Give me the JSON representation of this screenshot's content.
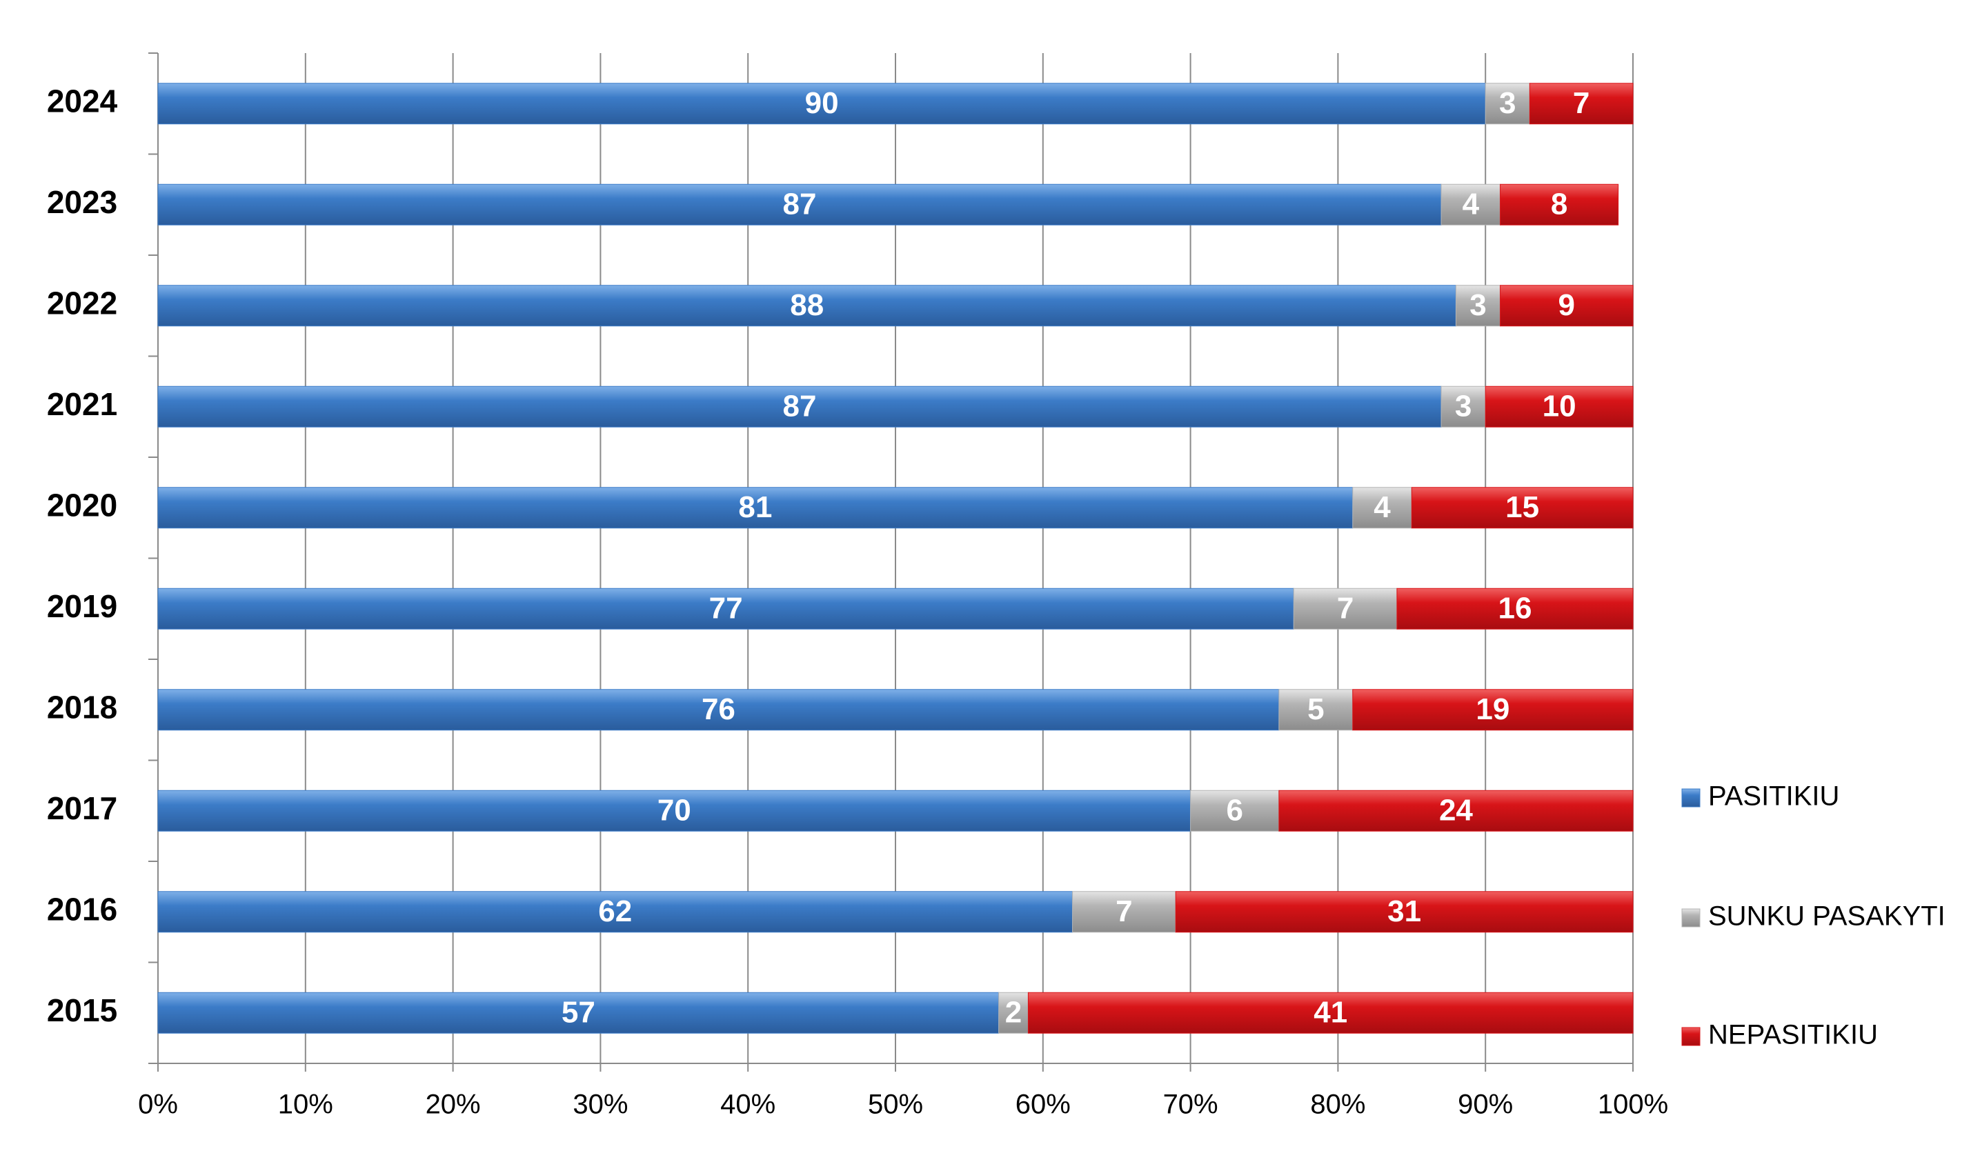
{
  "chart_data": {
    "type": "stacked-bar-horizontal",
    "categories": [
      "2024",
      "2023",
      "2022",
      "2021",
      "2020",
      "2019",
      "2018",
      "2017",
      "2016",
      "2015"
    ],
    "series": [
      {
        "name": "PASITIKIU",
        "color": "#3c7cc8",
        "values": [
          90,
          87,
          88,
          87,
          81,
          77,
          76,
          70,
          62,
          57
        ]
      },
      {
        "name": "SUNKU PASAKYTI",
        "color": "#b4b4b4",
        "values": [
          3,
          4,
          3,
          3,
          4,
          7,
          5,
          6,
          7,
          2
        ]
      },
      {
        "name": "NEPASITIKIU",
        "color": "#d81418",
        "values": [
          7,
          8,
          9,
          10,
          15,
          16,
          19,
          24,
          31,
          41
        ]
      }
    ],
    "xlim": [
      0,
      100
    ],
    "xticks": [
      {
        "value": 0,
        "label": "0%"
      },
      {
        "value": 10,
        "label": "10%"
      },
      {
        "value": 20,
        "label": "20%"
      },
      {
        "value": 30,
        "label": "30%"
      },
      {
        "value": 40,
        "label": "40%"
      },
      {
        "value": 50,
        "label": "50%"
      },
      {
        "value": 60,
        "label": "60%"
      },
      {
        "value": 70,
        "label": "70%"
      },
      {
        "value": 80,
        "label": "80%"
      },
      {
        "value": 90,
        "label": "90%"
      },
      {
        "value": 100,
        "label": "100%"
      }
    ],
    "grid": true,
    "legend": "right"
  }
}
